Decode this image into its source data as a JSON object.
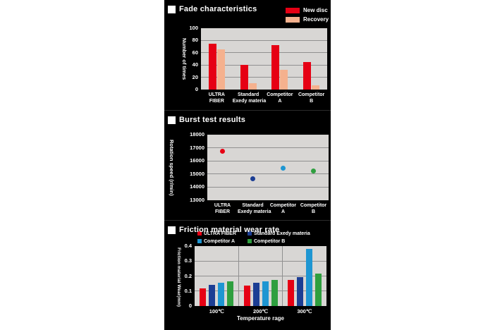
{
  "colors": {
    "red": "#e60014",
    "salmon": "#f5b18e",
    "navy": "#1c3e94",
    "lightblue": "#1e96d2",
    "green": "#2f9f3f"
  },
  "panel": {
    "background": "#000000",
    "plot_background": "#d8d6d4",
    "grid_color": "#909090",
    "text_color": "#ffffff"
  },
  "chart_data": [
    {
      "type": "bar",
      "title": "Fade characteristics",
      "ylabel": "Number of times",
      "ylim": [
        0,
        100
      ],
      "yticks": [
        "100",
        "80",
        "60",
        "40",
        "20",
        "0"
      ],
      "categories": [
        [
          "ULTRA",
          "FIBER"
        ],
        [
          "Standard",
          "Exedy materia"
        ],
        [
          "Competitor",
          "A"
        ],
        [
          "Competitor",
          "B"
        ]
      ],
      "series": [
        {
          "name": "New disc",
          "color": "red",
          "values": [
            75,
            40,
            72,
            45
          ]
        },
        {
          "name": "Recovery",
          "color": "salmon",
          "values": [
            66,
            10,
            32,
            7
          ]
        }
      ],
      "legend_position": "top-right",
      "grid": "horizontal"
    },
    {
      "type": "scatter",
      "title": "Burst test results",
      "ylabel": "Rotation speed (r/min)",
      "ylim": [
        13000,
        18000
      ],
      "yticks": [
        "18000",
        "17000",
        "16000",
        "15000",
        "14000",
        "13000"
      ],
      "categories": [
        [
          "ULTRA",
          "FIBER"
        ],
        [
          "Standard",
          "Exedy materia"
        ],
        [
          "Competitor",
          "A"
        ],
        [
          "Competitor",
          "B"
        ]
      ],
      "points": [
        {
          "category": "ULTRA FIBER",
          "value": 16750,
          "color": "red"
        },
        {
          "category": "Standard Exedy materia",
          "value": 14650,
          "color": "navy"
        },
        {
          "category": "Competitor A",
          "value": 15450,
          "color": "lightblue"
        },
        {
          "category": "Competitor B",
          "value": 15250,
          "color": "green"
        }
      ],
      "grid": "horizontal"
    },
    {
      "type": "bar",
      "title": "Friction material wear rate",
      "ylabel": "Friction material Wear(mm)",
      "xlabel": "Temperature rage",
      "ylim": [
        0,
        0.4
      ],
      "yticks": [
        "0.4",
        "0.3",
        "0.2",
        "0.1",
        "0"
      ],
      "categories": [
        "100℃",
        "200℃",
        "300℃"
      ],
      "series": [
        {
          "name": "ULTRA FIBER",
          "color": "red",
          "values": [
            0.12,
            0.135,
            0.175
          ]
        },
        {
          "name": "Standard Exedy materia",
          "color": "navy",
          "values": [
            0.14,
            0.155,
            0.195
          ]
        },
        {
          "name": "Competitor A",
          "color": "lightblue",
          "values": [
            0.155,
            0.165,
            0.38
          ]
        },
        {
          "name": "Competitor B",
          "color": "green",
          "values": [
            0.165,
            0.175,
            0.215
          ]
        }
      ],
      "legend_position": "top",
      "grid": "horizontal+vertical"
    }
  ]
}
